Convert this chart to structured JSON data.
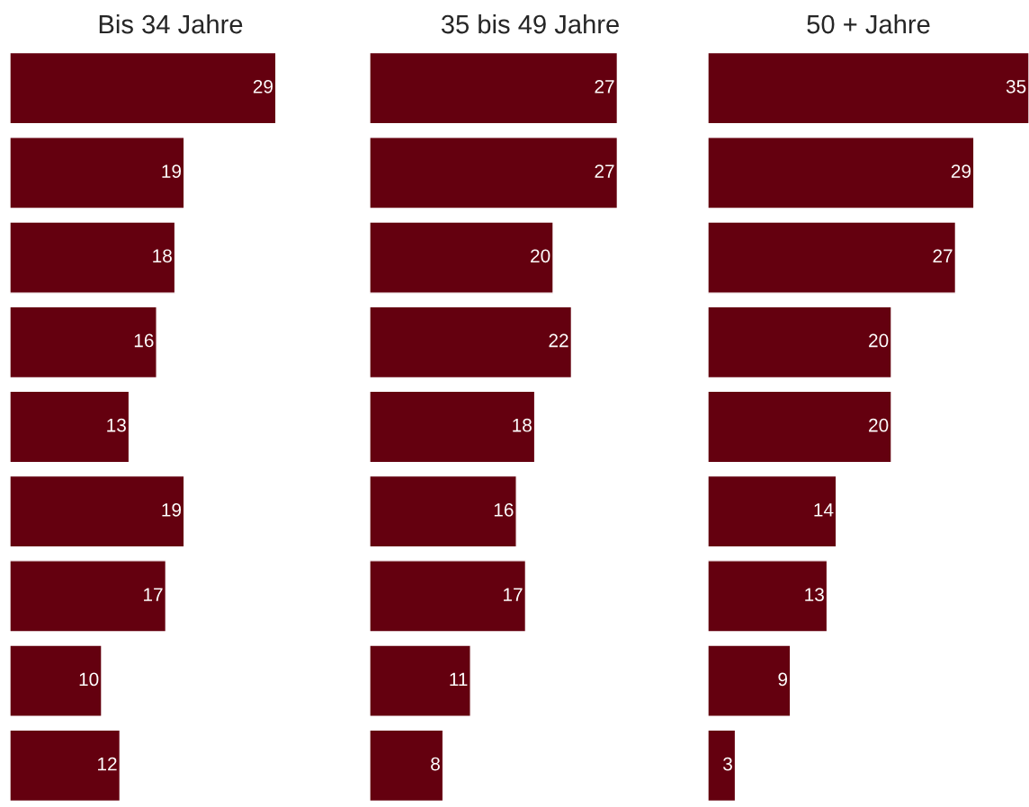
{
  "chart_data": [
    {
      "type": "bar",
      "orientation": "horizontal",
      "title": "Bis 34 Jahre",
      "categories": [
        null,
        null,
        null,
        null,
        null,
        null,
        null,
        null,
        null
      ],
      "values": [
        29,
        19,
        18,
        16,
        13,
        19,
        17,
        10,
        12
      ],
      "color": "#64000f",
      "data_labels": true
    },
    {
      "type": "bar",
      "orientation": "horizontal",
      "title": "35 bis 49 Jahre",
      "categories": [
        null,
        null,
        null,
        null,
        null,
        null,
        null,
        null,
        null
      ],
      "values": [
        27,
        27,
        20,
        22,
        18,
        16,
        17,
        11,
        8
      ],
      "color": "#64000f",
      "data_labels": true
    },
    {
      "type": "bar",
      "orientation": "horizontal",
      "title": "50 + Jahre",
      "categories": [
        null,
        null,
        null,
        null,
        null,
        null,
        null,
        null,
        null
      ],
      "values": [
        35,
        29,
        27,
        20,
        20,
        14,
        13,
        9,
        3
      ],
      "color": "#64000f",
      "data_labels": true
    }
  ]
}
